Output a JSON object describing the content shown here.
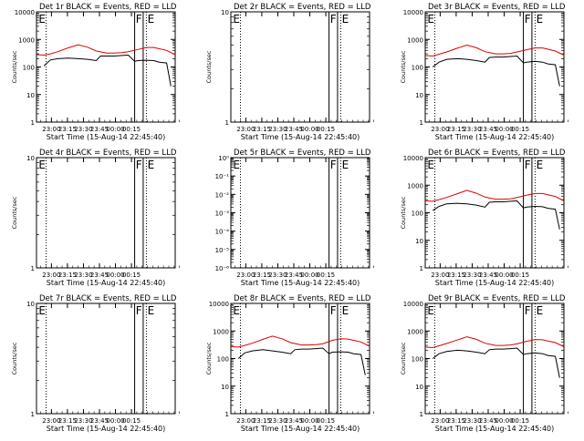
{
  "x_axis": {
    "tick_labels": [
      "23:00",
      "23:15",
      "23:30",
      "23:45",
      "00:00",
      "00:15"
    ],
    "xlabel": "Start Time (15-Aug-14 22:45:40)"
  },
  "colors": {
    "events": "#000000",
    "lld": "#e00000",
    "axes": "#000000"
  },
  "chart_data": [
    {
      "type": "line",
      "title": "Det 1r BLACK = Events, RED = LLD",
      "ylabel": "Counts/sec",
      "yscale": "log",
      "y_tick_labels": [
        "1",
        "10",
        "100",
        "1000",
        "10000"
      ],
      "markers": [
        "E",
        "F",
        "E"
      ],
      "show_xlabel": false,
      "has_data": true,
      "series": [
        {
          "name": "BLACK = Events",
          "color": "#000000",
          "x": [
            7,
            13,
            20,
            30,
            39,
            48,
            56,
            60,
            66,
            73,
            80,
            86,
            92,
            95,
            103,
            110,
            115,
            122,
            126
          ],
          "y": [
            110,
            180,
            200,
            210,
            200,
            190,
            170,
            250,
            250,
            250,
            260,
            270,
            160,
            170,
            175,
            170,
            150,
            140,
            20
          ]
        },
        {
          "name": "RED = LLD",
          "color": "#e00000",
          "x": [
            0,
            7,
            13,
            20,
            30,
            39,
            48,
            56,
            66,
            73,
            80,
            86,
            95,
            103,
            110,
            115,
            122,
            130
          ],
          "y": [
            280,
            270,
            300,
            360,
            500,
            640,
            520,
            380,
            320,
            320,
            330,
            360,
            430,
            510,
            510,
            460,
            400,
            280
          ]
        }
      ]
    },
    {
      "type": "line",
      "title": "Det 2r BLACK = Events, RED = LLD",
      "ylabel": "Counts/sec",
      "yscale": "log",
      "y_tick_labels": [
        "1",
        "10"
      ],
      "markers": [
        "E",
        "F",
        "E"
      ],
      "show_xlabel": false,
      "has_data": false,
      "series": []
    },
    {
      "type": "line",
      "title": "Det 3r BLACK = Events, RED = LLD",
      "ylabel": "Counts/sec",
      "yscale": "log",
      "y_tick_labels": [
        "1",
        "10",
        "100",
        "1000",
        "10000"
      ],
      "markers": [
        "E",
        "F",
        "E"
      ],
      "show_xlabel": false,
      "has_data": true,
      "series": [
        {
          "name": "BLACK = Events",
          "color": "#000000",
          "x": [
            7,
            13,
            20,
            30,
            39,
            48,
            56,
            60,
            66,
            73,
            80,
            86,
            92,
            95,
            103,
            110,
            115,
            122,
            126
          ],
          "y": [
            100,
            150,
            190,
            200,
            190,
            170,
            150,
            220,
            230,
            230,
            240,
            250,
            140,
            150,
            160,
            150,
            130,
            120,
            20
          ]
        },
        {
          "name": "RED = LLD",
          "color": "#e00000",
          "x": [
            0,
            7,
            13,
            20,
            30,
            39,
            48,
            56,
            66,
            73,
            80,
            86,
            95,
            103,
            110,
            115,
            122,
            130
          ],
          "y": [
            260,
            250,
            290,
            350,
            480,
            620,
            500,
            360,
            300,
            300,
            310,
            350,
            420,
            490,
            490,
            440,
            380,
            270
          ]
        }
      ]
    },
    {
      "type": "line",
      "title": "Det 4r BLACK = Events, RED = LLD",
      "ylabel": "Counts/sec",
      "yscale": "log",
      "y_tick_labels": [
        "1",
        "10"
      ],
      "markers": [
        "E",
        "F",
        "E"
      ],
      "show_xlabel": false,
      "has_data": false,
      "series": []
    },
    {
      "type": "line",
      "title": "Det 5r BLACK = Events, RED = LLD",
      "ylabel": "",
      "yscale": "log",
      "y_tick_labels": [
        "10⁻⁶",
        "10⁻⁵",
        "10⁻⁴",
        "10⁻³",
        "10⁻²",
        "10⁻¹",
        "10⁰"
      ],
      "markers": [
        "E",
        "F",
        "E"
      ],
      "show_xlabel": false,
      "has_data": false,
      "series": []
    },
    {
      "type": "line",
      "title": "Det 6r BLACK = Events, RED = LLD",
      "ylabel": "Counts/sec",
      "yscale": "log",
      "y_tick_labels": [
        "1",
        "10",
        "100",
        "1000",
        "10000"
      ],
      "markers": [
        "E",
        "F",
        "E"
      ],
      "show_xlabel": false,
      "has_data": true,
      "series": [
        {
          "name": "BLACK = Events",
          "color": "#000000",
          "x": [
            7,
            13,
            20,
            30,
            39,
            48,
            56,
            60,
            66,
            73,
            80,
            86,
            92,
            95,
            103,
            110,
            115,
            122,
            126
          ],
          "y": [
            120,
            170,
            210,
            220,
            210,
            190,
            160,
            240,
            250,
            250,
            260,
            270,
            150,
            160,
            170,
            165,
            145,
            135,
            25
          ]
        },
        {
          "name": "RED = LLD",
          "color": "#e00000",
          "x": [
            0,
            7,
            13,
            20,
            30,
            39,
            48,
            56,
            66,
            73,
            80,
            86,
            95,
            103,
            110,
            115,
            122,
            130
          ],
          "y": [
            270,
            260,
            300,
            360,
            490,
            650,
            510,
            370,
            310,
            310,
            320,
            360,
            430,
            500,
            500,
            450,
            390,
            270
          ]
        }
      ]
    },
    {
      "type": "line",
      "title": "Det 7r BLACK = Events, RED = LLD",
      "ylabel": "Counts/sec",
      "yscale": "log",
      "y_tick_labels": [
        "1",
        "10"
      ],
      "markers": [
        "E",
        "F",
        "E"
      ],
      "show_xlabel": false,
      "has_data": false,
      "series": []
    },
    {
      "type": "line",
      "title": "Det 8r BLACK = Events, RED = LLD",
      "ylabel": "Counts/sec",
      "yscale": "log",
      "y_tick_labels": [
        "1",
        "10",
        "100",
        "1000",
        "10000"
      ],
      "markers": [
        "E",
        "F",
        "E"
      ],
      "show_xlabel": false,
      "has_data": true,
      "series": [
        {
          "name": "BLACK = Events",
          "color": "#000000",
          "x": [
            7,
            13,
            20,
            30,
            39,
            48,
            56,
            60,
            66,
            73,
            80,
            86,
            92,
            95,
            103,
            110,
            115,
            122,
            126
          ],
          "y": [
            100,
            160,
            190,
            210,
            190,
            170,
            150,
            210,
            220,
            220,
            230,
            240,
            150,
            170,
            175,
            170,
            150,
            140,
            25
          ]
        },
        {
          "name": "RED = LLD",
          "color": "#e00000",
          "x": [
            0,
            7,
            13,
            20,
            30,
            39,
            48,
            56,
            66,
            73,
            80,
            86,
            95,
            103,
            110,
            115,
            122,
            130
          ],
          "y": [
            270,
            260,
            300,
            360,
            500,
            650,
            520,
            380,
            310,
            310,
            320,
            340,
            460,
            520,
            510,
            460,
            400,
            280
          ]
        }
      ]
    },
    {
      "type": "line",
      "title": "Det 9r BLACK = Events, RED = LLD",
      "ylabel": "Counts/sec",
      "yscale": "log",
      "y_tick_labels": [
        "1",
        "10",
        "100",
        "1000",
        "10000"
      ],
      "markers": [
        "E",
        "F",
        "E"
      ],
      "show_xlabel": false,
      "has_data": true,
      "series": [
        {
          "name": "BLACK = Events",
          "color": "#000000",
          "x": [
            7,
            13,
            20,
            30,
            39,
            48,
            56,
            60,
            66,
            73,
            80,
            86,
            92,
            95,
            103,
            110,
            115,
            122,
            126
          ],
          "y": [
            100,
            150,
            180,
            200,
            190,
            170,
            150,
            210,
            220,
            220,
            230,
            240,
            140,
            150,
            160,
            150,
            130,
            120,
            20
          ]
        },
        {
          "name": "RED = LLD",
          "color": "#e00000",
          "x": [
            0,
            7,
            13,
            20,
            30,
            39,
            48,
            56,
            66,
            73,
            80,
            86,
            95,
            103,
            110,
            115,
            122,
            130
          ],
          "y": [
            260,
            250,
            290,
            350,
            470,
            610,
            500,
            360,
            300,
            300,
            310,
            340,
            420,
            490,
            480,
            430,
            380,
            270
          ]
        }
      ]
    }
  ]
}
